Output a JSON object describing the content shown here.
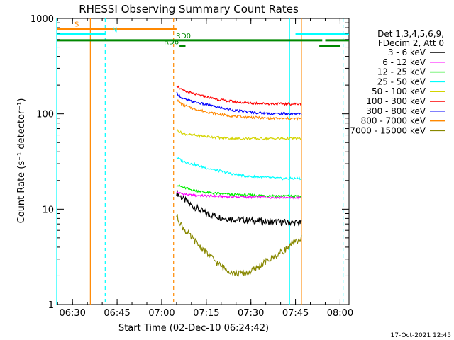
{
  "chart_data": {
    "type": "line",
    "title": "RHESSI Observing Summary Count Rates",
    "xlabel": "Start Time (02-Dec-10 06:24:42)",
    "ylabel": "Count Rate (s⁻¹ detector⁻¹)",
    "y_scale": "log",
    "ylim": [
      1,
      1000
    ],
    "xlim": [
      "06:24:42",
      "08:03:00"
    ],
    "x_ticks": [
      "06:30",
      "06:45",
      "07:00",
      "07:15",
      "07:30",
      "07:45",
      "08:00"
    ],
    "y_ticks": [
      "1",
      "10",
      "100",
      "1000"
    ],
    "legend_position": "right",
    "legend_header": [
      "Det 1,3,4,5,6,9,",
      "FDecim 2, Att 0"
    ],
    "timestamp": "17-Oct-2021 12:45",
    "series": [
      {
        "name": "3 - 6 keV",
        "color": "#000000",
        "x": [
          "07:05",
          "07:07",
          "07:10",
          "07:15",
          "07:20",
          "07:25",
          "07:30",
          "07:35",
          "07:40",
          "07:45",
          "07:47"
        ],
        "values": [
          15,
          13,
          11,
          9,
          8.2,
          7.8,
          7.6,
          7.4,
          7.3,
          7.2,
          7.2
        ]
      },
      {
        "name": "6 - 12 keV",
        "color": "#ff00ff",
        "x": [
          "07:05",
          "07:07",
          "07:10",
          "07:15",
          "07:20",
          "07:25",
          "07:30",
          "07:35",
          "07:40",
          "07:45",
          "07:47"
        ],
        "values": [
          15,
          14.5,
          14,
          13.8,
          13.6,
          13.5,
          13.4,
          13.4,
          13.3,
          13.3,
          13.3
        ]
      },
      {
        "name": "12 - 25 keV",
        "color": "#00ee00",
        "x": [
          "07:05",
          "07:07",
          "07:10",
          "07:15",
          "07:20",
          "07:25",
          "07:30",
          "07:35",
          "07:40",
          "07:45",
          "07:47"
        ],
        "values": [
          18,
          17,
          16,
          15,
          14.5,
          14.2,
          14,
          13.9,
          13.8,
          13.7,
          13.7
        ]
      },
      {
        "name": "25 - 50 keV",
        "color": "#00ffff",
        "x": [
          "07:05",
          "07:07",
          "07:10",
          "07:15",
          "07:20",
          "07:25",
          "07:30",
          "07:35",
          "07:40",
          "07:45",
          "07:47"
        ],
        "values": [
          35,
          32,
          30,
          27,
          25,
          23,
          22,
          21.5,
          21,
          21,
          21
        ]
      },
      {
        "name": "50 - 100 keV",
        "color": "#d4d400",
        "x": [
          "07:05",
          "07:07",
          "07:10",
          "07:15",
          "07:20",
          "07:25",
          "07:30",
          "07:35",
          "07:40",
          "07:45",
          "07:47"
        ],
        "values": [
          68,
          62,
          60,
          58,
          56,
          55,
          55,
          55,
          55,
          55,
          55
        ]
      },
      {
        "name": "100 - 300 keV",
        "color": "#ff0000",
        "x": [
          "07:05",
          "07:07",
          "07:10",
          "07:15",
          "07:20",
          "07:25",
          "07:30",
          "07:35",
          "07:40",
          "07:45",
          "07:47"
        ],
        "values": [
          200,
          175,
          165,
          150,
          140,
          133,
          130,
          128,
          127,
          127,
          127
        ]
      },
      {
        "name": "300 - 800 keV",
        "color": "#0000ff",
        "x": [
          "07:05",
          "07:07",
          "07:10",
          "07:15",
          "07:20",
          "07:25",
          "07:30",
          "07:35",
          "07:40",
          "07:45",
          "07:47"
        ],
        "values": [
          165,
          145,
          135,
          125,
          115,
          108,
          104,
          101,
          100,
          100,
          100
        ]
      },
      {
        "name": "800 - 7000 keV",
        "color": "#ff8800",
        "x": [
          "07:05",
          "07:07",
          "07:10",
          "07:15",
          "07:20",
          "07:25",
          "07:30",
          "07:35",
          "07:40",
          "07:45",
          "07:47"
        ],
        "values": [
          140,
          125,
          115,
          105,
          98,
          94,
          92,
          90,
          89,
          89,
          89
        ]
      },
      {
        "name": "7000 - 15000 keV",
        "color": "#888800",
        "x": [
          "07:05",
          "07:07",
          "07:10",
          "07:15",
          "07:20",
          "07:25",
          "07:30",
          "07:35",
          "07:40",
          "07:45",
          "07:47"
        ],
        "values": [
          8.5,
          6.5,
          5,
          3.5,
          2.5,
          2.1,
          2.2,
          2.8,
          3.5,
          4.5,
          5
        ]
      }
    ],
    "flag_bars": [
      {
        "label": "S",
        "color": "#ff8800",
        "start": "06:24:42",
        "end": "07:05",
        "value": 780
      },
      {
        "label": "N",
        "color": "#00ffff",
        "start": "06:24:42",
        "end": "06:41",
        "value": 680
      },
      {
        "label": "",
        "color": "#00ffff",
        "start": "07:45",
        "end": "08:03",
        "value": 680
      },
      {
        "label": "RD0",
        "color": "#008800",
        "start": "06:24:42",
        "end": "07:54",
        "value": 590
      },
      {
        "label": "",
        "color": "#008800",
        "start": "07:55",
        "end": "08:03",
        "value": 590
      },
      {
        "label": "RD6",
        "color": "#008800",
        "start": "07:06",
        "end": "07:08",
        "value": 510
      },
      {
        "label": "",
        "color": "#008800",
        "start": "07:53",
        "end": "08:00",
        "value": 510
      }
    ],
    "markers": [
      {
        "time": "06:24:42",
        "color": "#00ffff",
        "style": "solid"
      },
      {
        "time": "06:36",
        "color": "#ff8800",
        "style": "solid"
      },
      {
        "time": "06:41",
        "color": "#00ffff",
        "style": "dashed"
      },
      {
        "time": "07:04",
        "color": "#ff8800",
        "style": "dashed"
      },
      {
        "time": "07:43",
        "color": "#00ffff",
        "style": "solid"
      },
      {
        "time": "07:47",
        "color": "#ff8800",
        "style": "solid"
      },
      {
        "time": "08:01",
        "color": "#00ffff",
        "style": "dashed"
      }
    ]
  }
}
